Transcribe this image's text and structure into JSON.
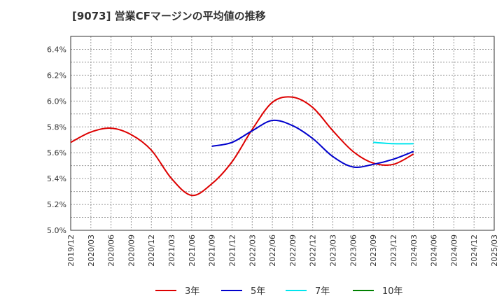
{
  "chart_data": {
    "type": "line",
    "title": "[9073]  営業CFマージンの平均値の推移",
    "xlabel": "",
    "ylabel": "",
    "x_ticks": [
      "2019/12",
      "2020/03",
      "2020/06",
      "2020/09",
      "2020/12",
      "2021/03",
      "2021/06",
      "2021/09",
      "2021/12",
      "2022/03",
      "2022/06",
      "2022/09",
      "2022/12",
      "2023/03",
      "2023/06",
      "2023/09",
      "2023/12",
      "2024/03",
      "2024/06",
      "2024/09",
      "2024/12",
      "2025/03"
    ],
    "y_ticks": [
      "5.0%",
      "5.2%",
      "5.4%",
      "5.6%",
      "5.8%",
      "6.0%",
      "6.2%",
      "6.4%"
    ],
    "ylim": [
      5.0,
      6.5
    ],
    "grid": true,
    "legend_position": "bottom",
    "series": [
      {
        "name": "3年",
        "color": "#dd0000",
        "points": [
          [
            "2019/12",
            5.68
          ],
          [
            "2020/03",
            5.76
          ],
          [
            "2020/06",
            5.79
          ],
          [
            "2020/09",
            5.74
          ],
          [
            "2020/12",
            5.62
          ],
          [
            "2021/03",
            5.4
          ],
          [
            "2021/06",
            5.27
          ],
          [
            "2021/09",
            5.36
          ],
          [
            "2021/12",
            5.53
          ],
          [
            "2022/03",
            5.78
          ],
          [
            "2022/06",
            5.99
          ],
          [
            "2022/09",
            6.03
          ],
          [
            "2022/12",
            5.95
          ],
          [
            "2023/03",
            5.77
          ],
          [
            "2023/06",
            5.61
          ],
          [
            "2023/09",
            5.52
          ],
          [
            "2023/12",
            5.51
          ],
          [
            "2024/03",
            5.59
          ]
        ]
      },
      {
        "name": "5年",
        "color": "#0000cc",
        "points": [
          [
            "2021/09",
            5.65
          ],
          [
            "2021/12",
            5.68
          ],
          [
            "2022/03",
            5.77
          ],
          [
            "2022/06",
            5.85
          ],
          [
            "2022/09",
            5.81
          ],
          [
            "2022/12",
            5.71
          ],
          [
            "2023/03",
            5.57
          ],
          [
            "2023/06",
            5.49
          ],
          [
            "2023/09",
            5.51
          ],
          [
            "2023/12",
            5.55
          ],
          [
            "2024/03",
            5.61
          ]
        ]
      },
      {
        "name": "7年",
        "color": "#00e5ee",
        "points": [
          [
            "2023/09",
            5.68
          ],
          [
            "2023/12",
            5.67
          ],
          [
            "2024/03",
            5.67
          ]
        ]
      },
      {
        "name": "10年",
        "color": "#008000",
        "points": []
      }
    ]
  }
}
